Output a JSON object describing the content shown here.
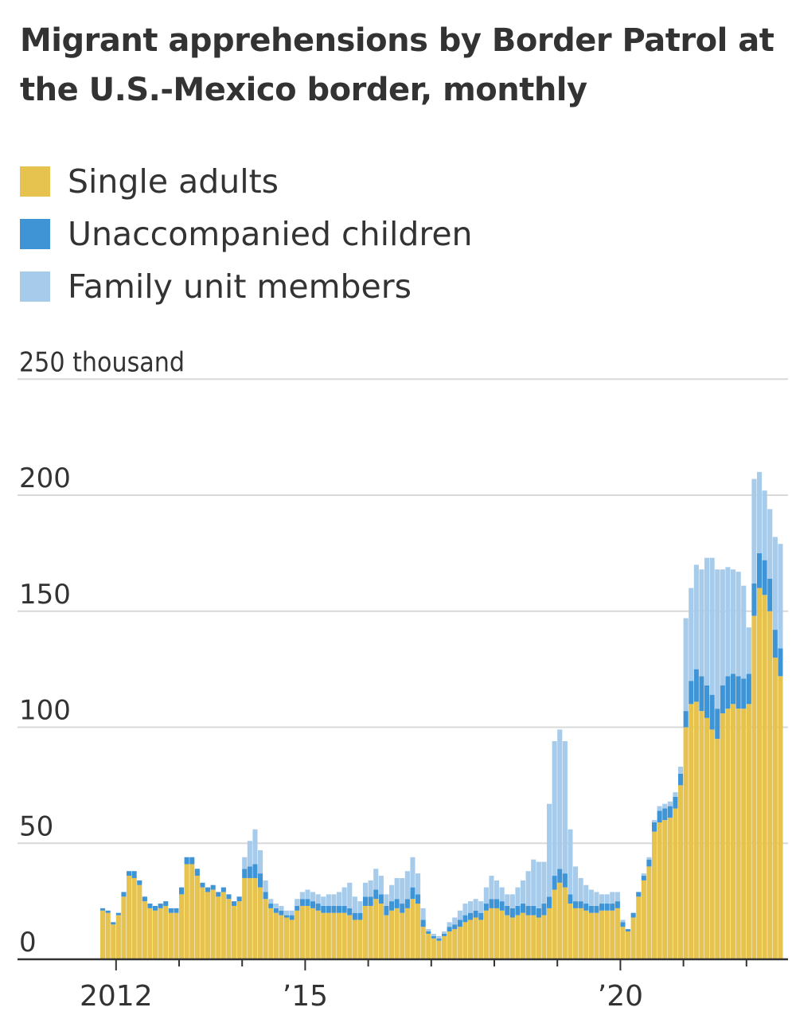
{
  "title": "Migrant apprehensions by Border Patrol at the U.S.-Mexico border, monthly",
  "legend": [
    {
      "label": "Single adults",
      "color": "#e6c34f"
    },
    {
      "label": "Unaccompanied children",
      "color": "#3f94d6"
    },
    {
      "label": "Family unit members",
      "color": "#a6cbeb"
    }
  ],
  "chart_data": {
    "type": "bar",
    "stacked": true,
    "x_start": "2011-10",
    "x_end": "2022-06",
    "y_unit_label": "250 thousand",
    "ytick_labels": [
      "0",
      "50",
      "100",
      "150",
      "200"
    ],
    "yticks": [
      0,
      50,
      100,
      150,
      200,
      250
    ],
    "ylim": [
      0,
      250
    ],
    "xtick_labels": [
      {
        "label": "2012",
        "date": "2012-01"
      },
      {
        "label": "’15",
        "date": "2015-01"
      },
      {
        "label": "’20",
        "date": "2020-01"
      }
    ],
    "grid": true,
    "legend_position": "top-left",
    "colors": {
      "single_adults": "#e6c34f",
      "unaccompanied_children": "#3f94d6",
      "family_unit_members": "#a6cbeb"
    },
    "series": [
      {
        "name": "Single adults",
        "values": [
          21,
          20,
          15,
          19,
          27,
          36,
          35,
          32,
          25,
          22,
          21,
          22,
          23,
          20,
          20,
          28,
          41,
          41,
          36,
          31,
          29,
          30,
          27,
          29,
          26,
          23,
          25,
          35,
          35,
          35,
          31,
          26,
          22,
          20,
          19,
          18,
          17,
          21,
          23,
          23,
          22,
          21,
          20,
          20,
          20,
          20,
          20,
          19,
          17,
          17,
          23,
          23,
          26,
          24,
          19,
          21,
          22,
          20,
          22,
          26,
          24,
          14,
          11,
          9,
          8,
          10,
          12,
          13,
          14,
          16,
          17,
          18,
          17,
          21,
          22,
          22,
          21,
          19,
          18,
          19,
          20,
          19,
          19,
          18,
          19,
          22,
          30,
          33,
          31,
          24,
          22,
          22,
          21,
          20,
          20,
          21,
          21,
          21,
          22,
          14,
          12,
          18,
          27,
          34,
          40,
          55,
          59,
          60,
          61,
          65,
          75,
          100,
          110,
          111,
          107,
          104,
          99,
          95,
          106,
          108,
          110,
          108,
          108,
          110,
          148,
          160,
          157,
          150,
          130,
          122
        ]
      },
      {
        "name": "Unaccompanied children",
        "values": [
          1,
          1,
          1,
          1,
          2,
          2,
          3,
          2,
          2,
          2,
          2,
          2,
          2,
          2,
          2,
          3,
          3,
          3,
          3,
          2,
          2,
          2,
          2,
          2,
          2,
          2,
          2,
          4,
          5,
          6,
          6,
          3,
          2,
          2,
          2,
          1,
          2,
          2,
          3,
          3,
          3,
          3,
          3,
          3,
          3,
          3,
          3,
          3,
          3,
          3,
          4,
          4,
          4,
          4,
          4,
          4,
          4,
          4,
          4,
          5,
          4,
          3,
          1,
          1,
          1,
          1,
          2,
          2,
          3,
          3,
          3,
          3,
          3,
          3,
          4,
          4,
          4,
          4,
          4,
          4,
          4,
          4,
          4,
          4,
          5,
          5,
          6,
          6,
          6,
          4,
          3,
          3,
          3,
          3,
          3,
          3,
          3,
          3,
          3,
          2,
          1,
          2,
          2,
          2,
          3,
          4,
          5,
          5,
          5,
          5,
          5,
          7,
          10,
          14,
          15,
          14,
          15,
          13,
          12,
          14,
          13,
          14,
          13,
          13,
          14,
          15,
          15,
          14,
          12,
          12
        ]
      },
      {
        "name": "Family unit members",
        "values": [
          0,
          0,
          0,
          0,
          0,
          0,
          0,
          0,
          0,
          0,
          0,
          0,
          0,
          0,
          0,
          0,
          0,
          0,
          0,
          0,
          0,
          0,
          0,
          0,
          0,
          0,
          0,
          5,
          11,
          15,
          10,
          5,
          2,
          2,
          2,
          2,
          2,
          3,
          3,
          4,
          4,
          4,
          4,
          5,
          5,
          6,
          8,
          11,
          7,
          5,
          6,
          7,
          9,
          8,
          5,
          7,
          9,
          11,
          12,
          13,
          9,
          5,
          1,
          1,
          1,
          1,
          2,
          3,
          4,
          5,
          5,
          5,
          5,
          7,
          10,
          8,
          6,
          5,
          6,
          8,
          10,
          15,
          20,
          20,
          18,
          40,
          58,
          60,
          57,
          28,
          15,
          10,
          8,
          7,
          6,
          4,
          4,
          5,
          4,
          1,
          0,
          0,
          0,
          1,
          1,
          1,
          2,
          2,
          2,
          2,
          3,
          40,
          40,
          45,
          46,
          55,
          59,
          60,
          50,
          47,
          45,
          45,
          40,
          20,
          45,
          35,
          30,
          30,
          40,
          45
        ]
      }
    ]
  }
}
